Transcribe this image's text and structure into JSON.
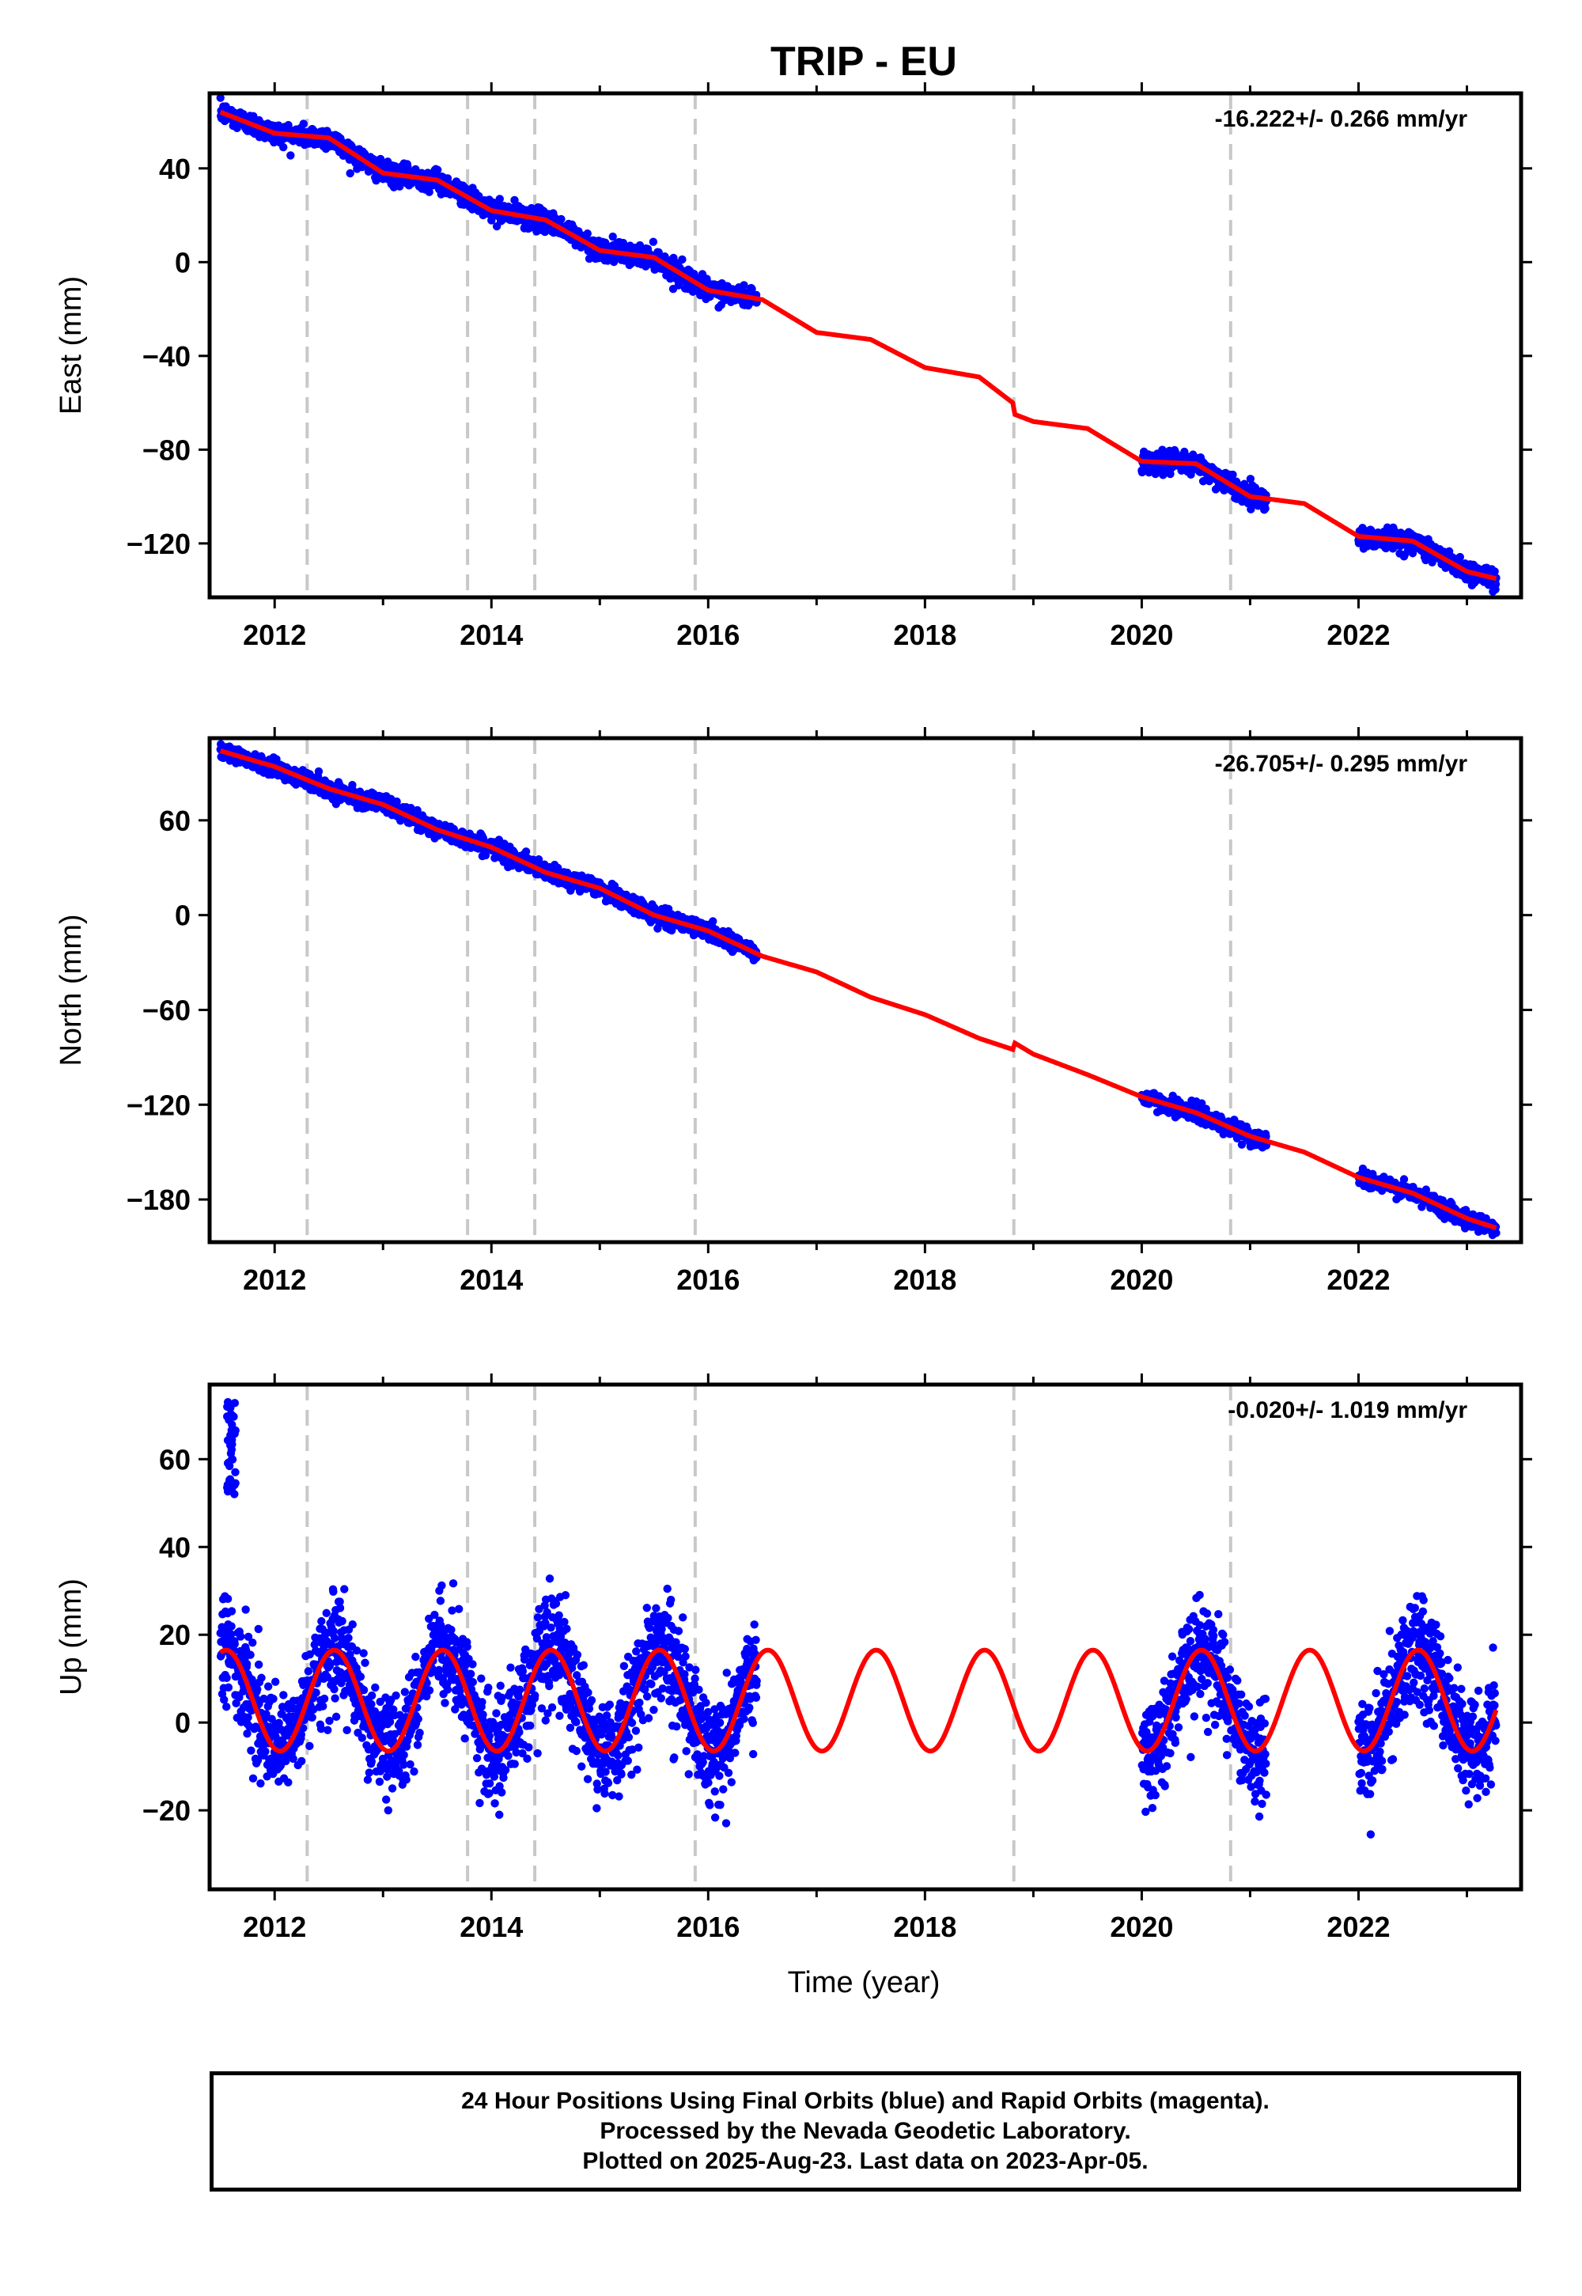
{
  "title": "TRIP - EU",
  "xlabel": "Time (year)",
  "x_ticks": [
    "2012",
    "2014",
    "2016",
    "2018",
    "2020",
    "2022"
  ],
  "colors": {
    "data": "#0000ff",
    "model": "#ff0000",
    "event_lines": "#c8c8c8",
    "frame": "#000000"
  },
  "event_lines": [
    2012.3,
    2013.78,
    2014.4,
    2015.88,
    2018.82,
    2020.82
  ],
  "footer": {
    "line1": "24 Hour Positions Using Final Orbits (blue) and Rapid Orbits (magenta).",
    "line2": "Processed by the Nevada Geodetic Laboratory.",
    "line3": "Plotted on 2025-Aug-23. Last data on 2023-Apr-05."
  },
  "chart_data": [
    {
      "type": "scatter",
      "component": "east",
      "ylabel": "East (mm)",
      "rate": "-16.222+/- 0.266 mm/yr",
      "xlim": [
        2011.4,
        2023.5
      ],
      "ylim": [
        -143,
        72
      ],
      "y_ticks": [
        40,
        0,
        -40,
        -80,
        -120
      ],
      "y_tick_labels": [
        "40",
        "0",
        "−40",
        "−80",
        "−120"
      ],
      "data_coverage": [
        [
          2011.5,
          2016.45
        ],
        [
          2020.0,
          2021.15
        ],
        [
          2022.0,
          2023.27
        ]
      ],
      "model_points": [
        [
          2011.5,
          64
        ],
        [
          2012.0,
          55
        ],
        [
          2012.5,
          53
        ],
        [
          2013.0,
          38
        ],
        [
          2013.5,
          35
        ],
        [
          2014.0,
          22
        ],
        [
          2014.5,
          18
        ],
        [
          2015.0,
          5
        ],
        [
          2015.5,
          2
        ],
        [
          2016.0,
          -12
        ],
        [
          2016.5,
          -16
        ],
        [
          2017.0,
          -30
        ],
        [
          2017.5,
          -33
        ],
        [
          2018.0,
          -45
        ],
        [
          2018.5,
          -49
        ],
        [
          2018.81,
          -60
        ],
        [
          2018.83,
          -65
        ],
        [
          2019.0,
          -68
        ],
        [
          2019.5,
          -71
        ],
        [
          2020.0,
          -85
        ],
        [
          2020.5,
          -86
        ],
        [
          2021.0,
          -100
        ],
        [
          2021.5,
          -103
        ],
        [
          2022.0,
          -117
        ],
        [
          2022.5,
          -119
        ],
        [
          2023.0,
          -132
        ],
        [
          2023.27,
          -135
        ]
      ]
    },
    {
      "type": "scatter",
      "component": "north",
      "ylabel": "North (mm)",
      "rate": "-26.705+/- 0.295 mm/yr",
      "xlim": [
        2011.4,
        2023.5
      ],
      "ylim": [
        -207,
        112
      ],
      "y_ticks": [
        60,
        0,
        -60,
        -120,
        -180
      ],
      "y_tick_labels": [
        "60",
        "0",
        "−60",
        "−120",
        "−180"
      ],
      "data_coverage": [
        [
          2011.5,
          2016.45
        ],
        [
          2020.0,
          2021.15
        ],
        [
          2022.0,
          2023.27
        ]
      ],
      "model_points": [
        [
          2011.5,
          104
        ],
        [
          2012.0,
          94
        ],
        [
          2012.5,
          80
        ],
        [
          2013.0,
          70
        ],
        [
          2013.5,
          54
        ],
        [
          2014.0,
          43
        ],
        [
          2014.5,
          27
        ],
        [
          2015.0,
          17
        ],
        [
          2015.5,
          0
        ],
        [
          2016.0,
          -10
        ],
        [
          2016.5,
          -26
        ],
        [
          2017.0,
          -36
        ],
        [
          2017.5,
          -52
        ],
        [
          2018.0,
          -63
        ],
        [
          2018.5,
          -78
        ],
        [
          2018.81,
          -85
        ],
        [
          2018.83,
          -81
        ],
        [
          2019.0,
          -88
        ],
        [
          2019.5,
          -101
        ],
        [
          2020.0,
          -115
        ],
        [
          2020.5,
          -125
        ],
        [
          2021.0,
          -140
        ],
        [
          2021.5,
          -150
        ],
        [
          2022.0,
          -166
        ],
        [
          2022.5,
          -176
        ],
        [
          2023.0,
          -192
        ],
        [
          2023.27,
          -198
        ]
      ]
    },
    {
      "type": "scatter",
      "component": "up",
      "ylabel": "Up (mm)",
      "rate": "-0.020+/- 1.019 mm/yr",
      "xlim": [
        2011.4,
        2023.5
      ],
      "ylim": [
        -38,
        77
      ],
      "y_ticks": [
        60,
        40,
        20,
        0,
        -20
      ],
      "y_tick_labels": [
        "60",
        "40",
        "20",
        "0",
        "−20"
      ],
      "data_coverage": [
        [
          2011.5,
          2016.45
        ],
        [
          2020.0,
          2021.15
        ],
        [
          2022.0,
          2023.27
        ]
      ],
      "model": {
        "start": 2011.5,
        "end": 2023.27,
        "amplitude_mm": 11.5,
        "period_yr": 1.0,
        "peak_phase_yr": 0.55,
        "offset_mm": 5
      },
      "outlier_cluster": {
        "x": 2011.6,
        "y_range": [
          52,
          73
        ]
      }
    }
  ]
}
